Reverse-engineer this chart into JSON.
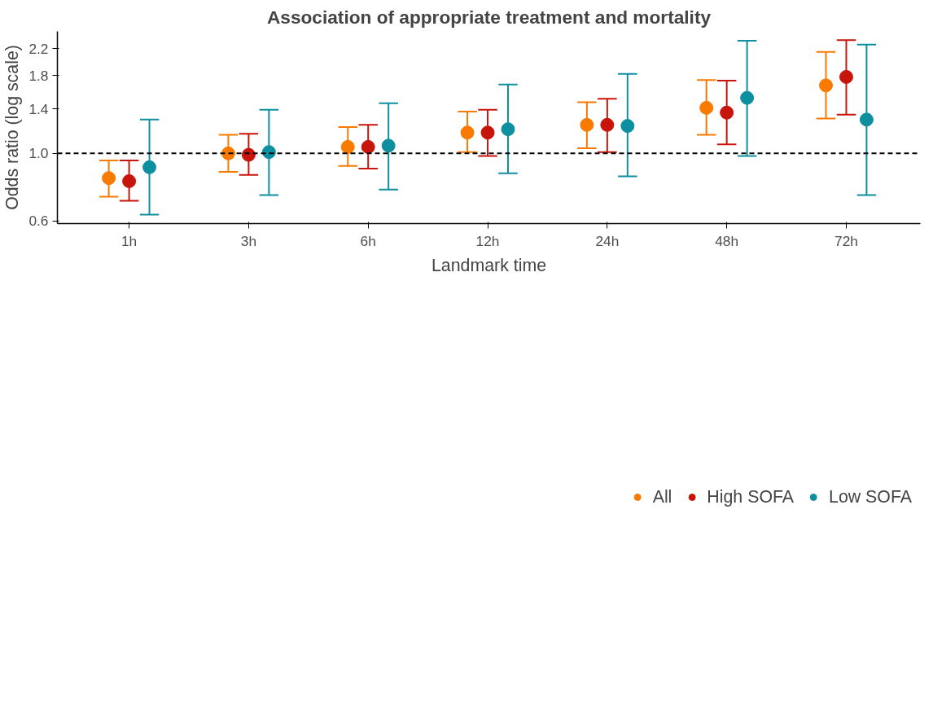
{
  "chart_data": {
    "type": "scatter",
    "title": "Association of appropriate treatment and mortality",
    "xlabel": "Landmark time",
    "ylabel": "Odds ratio (log scale)",
    "categories": [
      "1h",
      "3h",
      "6h",
      "12h",
      "24h",
      "48h",
      "72h"
    ],
    "log": "y",
    "ylim": [
      0.589,
      2.51
    ],
    "yticks": [
      0.6,
      {
        "value": 1,
        "label": "1.0"
      },
      1.4,
      1.8,
      2.2
    ],
    "grid": false,
    "legend": "bottom",
    "marker": "circle",
    "ref_lines": [
      {
        "axis": "y",
        "value": 1,
        "line_style": "dashed",
        "color": "#000000"
      }
    ],
    "series": [
      {
        "name": "All",
        "color": "#f97a00",
        "values": [
          0.83,
          1.0,
          1.05,
          1.17,
          1.24,
          1.41,
          1.67
        ],
        "errors": [
          [
            0.721,
            0.948
          ],
          [
            0.87,
            1.15
          ],
          [
            0.91,
            1.22
          ],
          [
            1.01,
            1.37
          ],
          [
            1.04,
            1.47
          ],
          [
            1.15,
            1.74
          ],
          [
            1.3,
            2.15
          ]
        ]
      },
      {
        "name": "High SOFA",
        "color": "#c8150c",
        "values": [
          0.811,
          0.989,
          1.05,
          1.17,
          1.24,
          1.36,
          1.78
        ],
        "errors": [
          [
            0.7,
            0.948
          ],
          [
            0.85,
            1.16
          ],
          [
            0.891,
            1.24
          ],
          [
            0.981,
            1.39
          ],
          [
            1.01,
            1.51
          ],
          [
            1.07,
            1.73
          ],
          [
            1.34,
            2.35
          ]
        ]
      },
      {
        "name": "Low SOFA",
        "color": "#0e8fa0",
        "values": [
          0.901,
          1.01,
          1.06,
          1.2,
          1.23,
          1.52,
          1.29
        ],
        "errors": [
          [
            0.63,
            1.29
          ],
          [
            0.73,
            1.39
          ],
          [
            0.761,
            1.46
          ],
          [
            0.861,
            1.68
          ],
          [
            0.841,
            1.82
          ],
          [
            0.981,
            2.34
          ],
          [
            0.73,
            2.27
          ]
        ]
      }
    ]
  }
}
